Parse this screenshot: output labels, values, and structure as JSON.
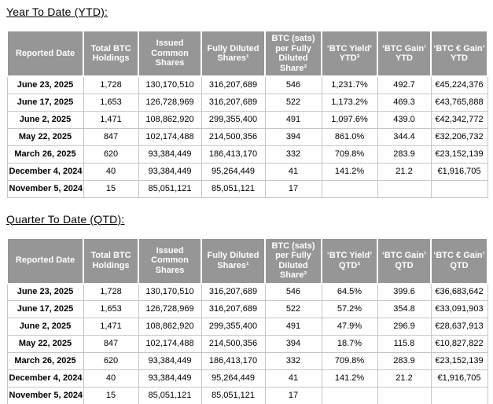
{
  "colors": {
    "header_bg": "#969696",
    "header_text": "#ffffff",
    "body_border": "#c6c6c6",
    "text": "#000000"
  },
  "ytd": {
    "title": "Year To Date (YTD):",
    "headers": [
      "Reported Date",
      "Total BTC Holdings",
      "Issued Common Shares",
      "Fully Diluted Shares¹",
      "BTC (sats) per Fully Diluted Share²",
      "‘BTC Yield’ YTD³",
      "‘BTC Gain’ YTD",
      "‘BTC € Gain’ YTD"
    ],
    "rows": [
      [
        "June 23, 2025",
        "1,728",
        "130,170,510",
        "316,207,689",
        "546",
        "1,231.7%",
        "492.7",
        "€45,224,376"
      ],
      [
        "June 17, 2025",
        "1,653",
        "126,728,969",
        "316,207,689",
        "522",
        "1,173.2%",
        "469.3",
        "€43,765,888"
      ],
      [
        "June 2, 2025",
        "1,471",
        "108,862,920",
        "299,355,400",
        "491",
        "1,097.6%",
        "439.0",
        "€42,342,772"
      ],
      [
        "May 22, 2025",
        "847",
        "102,174,488",
        "214,500,356",
        "394",
        "861.0%",
        "344.4",
        "€32,206,732"
      ],
      [
        "March 26, 2025",
        "620",
        "93,384,449",
        "186,413,170",
        "332",
        "709.8%",
        "283.9",
        "€23,152,139"
      ],
      [
        "December 4, 2024",
        "40",
        "93,384,449",
        "95,264,449",
        "41",
        "141.2%",
        "21.2",
        "€1,916,705"
      ],
      [
        "November 5, 2024",
        "15",
        "85,051,121",
        "85,051,121",
        "17",
        "",
        "",
        ""
      ]
    ]
  },
  "qtd": {
    "title": "Quarter To Date (QTD):",
    "headers": [
      "Reported Date",
      "Total BTC Holdings",
      "Issued Common Shares",
      "Fully Diluted Shares¹",
      "BTC (sats) per Fully Diluted Share²",
      "‘BTC Yield’ QTD³",
      "‘BTC Gain’ QTD",
      "‘BTC € Gain’ QTD"
    ],
    "rows": [
      [
        "June 23, 2025",
        "1,728",
        "130,170,510",
        "316,207,689",
        "546",
        "64.5%",
        "399.6",
        "€36,683,642"
      ],
      [
        "June 17, 2025",
        "1,653",
        "126,728,969",
        "316,207,689",
        "522",
        "57.2%",
        "354.8",
        "€33,091,903"
      ],
      [
        "June 2, 2025",
        "1,471",
        "108,862,920",
        "299,355,400",
        "491",
        "47.9%",
        "296.9",
        "€28,637,913"
      ],
      [
        "May 22, 2025",
        "847",
        "102,174,488",
        "214,500,356",
        "394",
        "18.7%",
        "115.8",
        "€10,827,822"
      ],
      [
        "March 26, 2025",
        "620",
        "93,384,449",
        "186,413,170",
        "332",
        "709.8%",
        "283.9",
        "€23,152,139"
      ],
      [
        "December 4, 2024",
        "40",
        "93,384,449",
        "95,264,449",
        "41",
        "141.2%",
        "21.2",
        "€1,916,705"
      ],
      [
        "November 5, 2024",
        "15",
        "85,051,121",
        "85,051,121",
        "17",
        "",
        "",
        ""
      ]
    ]
  }
}
